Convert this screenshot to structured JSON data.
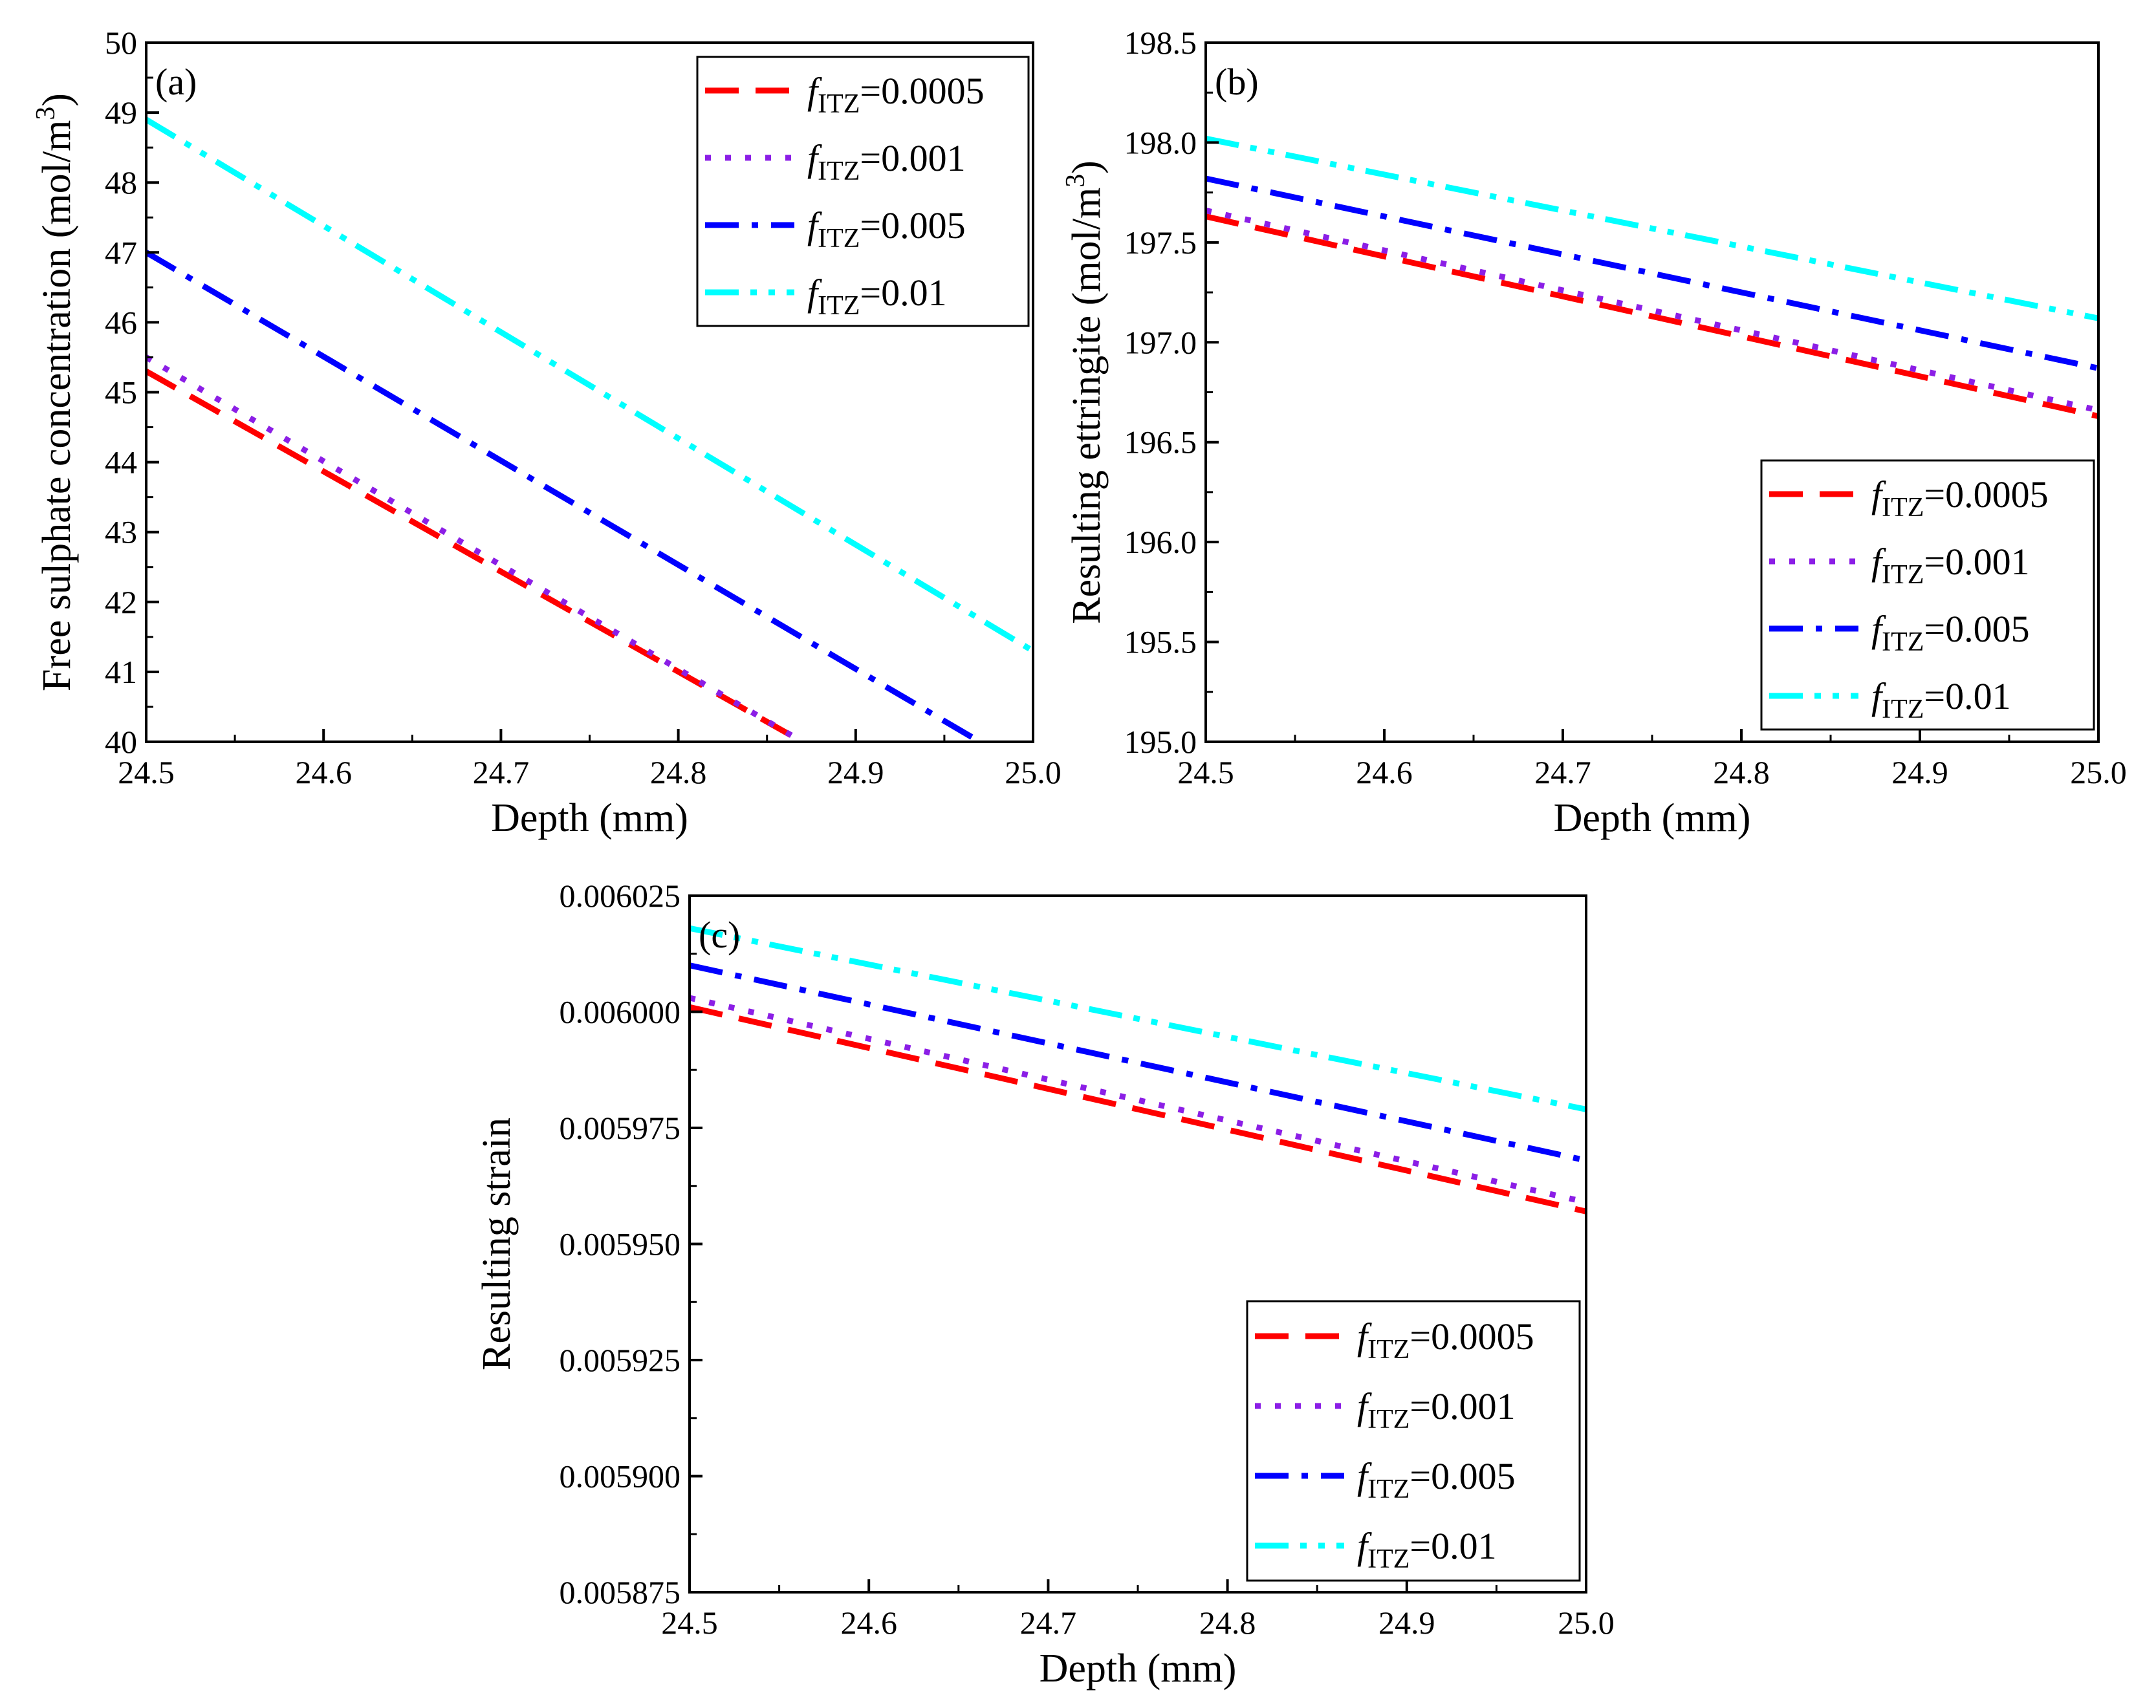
{
  "figure": {
    "panels": [
      "a",
      "b",
      "c"
    ],
    "colors": {
      "f0.0005": "#ff0000",
      "f0.001": "#8b1ee6",
      "f0.005": "#0000ff",
      "f0.01": "#00ffff"
    }
  },
  "chart_data": [
    {
      "id": "a",
      "type": "line",
      "panel_label": "(a)",
      "xlabel": "Depth (mm)",
      "ylabel": "Free sulphate concentration (mol/m",
      "ylabel_sup": "3",
      "ylabel_close": ")",
      "xlim": [
        24.5,
        25.0
      ],
      "ylim": [
        40,
        50
      ],
      "x_ticks": [
        "24.5",
        "24.6",
        "24.7",
        "24.8",
        "24.9",
        "25.0"
      ],
      "y_ticks": [
        "40",
        "41",
        "42",
        "43",
        "44",
        "45",
        "46",
        "47",
        "48",
        "49",
        "50"
      ],
      "legend_position": "top-right",
      "series": [
        {
          "name": "f_ITZ=0.0005",
          "legend_italic": "f",
          "legend_sub": "ITZ",
          "legend_value": "=0.0005",
          "color": "#ff0000",
          "dash": "dash",
          "x": [
            24.5,
            24.87
          ],
          "y": [
            45.3,
            40.0
          ]
        },
        {
          "name": "f_ITZ=0.001",
          "legend_italic": "f",
          "legend_sub": "ITZ",
          "legend_value": "=0.001",
          "color": "#8b1ee6",
          "dash": "dot",
          "x": [
            24.5,
            24.87
          ],
          "y": [
            45.5,
            40.0
          ]
        },
        {
          "name": "f_ITZ=0.005",
          "legend_italic": "f",
          "legend_sub": "ITZ",
          "legend_value": "=0.005",
          "color": "#0000ff",
          "dash": "dashdot",
          "x": [
            24.5,
            24.97
          ],
          "y": [
            47.0,
            40.0
          ]
        },
        {
          "name": "f_ITZ=0.01",
          "legend_italic": "f",
          "legend_sub": "ITZ",
          "legend_value": "=0.01",
          "color": "#00ffff",
          "dash": "dashdotdot",
          "x": [
            24.5,
            25.0
          ],
          "y": [
            48.9,
            41.3
          ]
        }
      ]
    },
    {
      "id": "b",
      "type": "line",
      "panel_label": "(b)",
      "xlabel": "Depth (mm)",
      "ylabel": "Resulting ettringite (mol/m",
      "ylabel_sup": "3",
      "ylabel_close": ")",
      "xlim": [
        24.5,
        25.0
      ],
      "ylim": [
        195.0,
        198.5
      ],
      "x_ticks": [
        "24.5",
        "24.6",
        "24.7",
        "24.8",
        "24.9",
        "25.0"
      ],
      "y_ticks": [
        "195.0",
        "195.5",
        "196.0",
        "196.5",
        "197.0",
        "197.5",
        "198.0",
        "198.5"
      ],
      "legend_position": "bottom-right",
      "series": [
        {
          "name": "f_ITZ=0.0005",
          "legend_italic": "f",
          "legend_sub": "ITZ",
          "legend_value": "=0.0005",
          "color": "#ff0000",
          "dash": "dash",
          "x": [
            24.5,
            25.0
          ],
          "y": [
            197.63,
            196.63
          ]
        },
        {
          "name": "f_ITZ=0.001",
          "legend_italic": "f",
          "legend_sub": "ITZ",
          "legend_value": "=0.001",
          "color": "#8b1ee6",
          "dash": "dot",
          "x": [
            24.5,
            25.0
          ],
          "y": [
            197.66,
            196.66
          ]
        },
        {
          "name": "f_ITZ=0.005",
          "legend_italic": "f",
          "legend_sub": "ITZ",
          "legend_value": "=0.005",
          "color": "#0000ff",
          "dash": "dashdot",
          "x": [
            24.5,
            25.0
          ],
          "y": [
            197.82,
            196.87
          ]
        },
        {
          "name": "f_ITZ=0.01",
          "legend_italic": "f",
          "legend_sub": "ITZ",
          "legend_value": "=0.01",
          "color": "#00ffff",
          "dash": "dashdotdot",
          "x": [
            24.5,
            25.0
          ],
          "y": [
            198.02,
            197.12
          ]
        }
      ]
    },
    {
      "id": "c",
      "type": "line",
      "panel_label": "(c)",
      "xlabel": "Depth (mm)",
      "ylabel": "Resulting strain",
      "ylabel_sup": "",
      "ylabel_close": "",
      "xlim": [
        24.5,
        25.0
      ],
      "ylim": [
        0.005875,
        0.006025
      ],
      "x_ticks": [
        "24.5",
        "24.6",
        "24.7",
        "24.8",
        "24.9",
        "25.0"
      ],
      "y_ticks": [
        "0.005875",
        "0.005900",
        "0.005925",
        "0.005950",
        "0.005975",
        "0.006000",
        "0.006025"
      ],
      "legend_position": "bottom-right",
      "series": [
        {
          "name": "f_ITZ=0.0005",
          "legend_italic": "f",
          "legend_sub": "ITZ",
          "legend_value": "=0.0005",
          "color": "#ff0000",
          "dash": "dash",
          "x": [
            24.5,
            25.0
          ],
          "y": [
            0.006001,
            0.005957
          ]
        },
        {
          "name": "f_ITZ=0.001",
          "legend_italic": "f",
          "legend_sub": "ITZ",
          "legend_value": "=0.001",
          "color": "#8b1ee6",
          "dash": "dot",
          "x": [
            24.5,
            25.0
          ],
          "y": [
            0.006003,
            0.005959
          ]
        },
        {
          "name": "f_ITZ=0.005",
          "legend_italic": "f",
          "legend_sub": "ITZ",
          "legend_value": "=0.005",
          "color": "#0000ff",
          "dash": "dashdot",
          "x": [
            24.5,
            25.0
          ],
          "y": [
            0.00601,
            0.005968
          ]
        },
        {
          "name": "f_ITZ=0.01",
          "legend_italic": "f",
          "legend_sub": "ITZ",
          "legend_value": "=0.01",
          "color": "#00ffff",
          "dash": "dashdotdot",
          "x": [
            24.5,
            25.0
          ],
          "y": [
            0.006018,
            0.005979
          ]
        }
      ]
    }
  ]
}
